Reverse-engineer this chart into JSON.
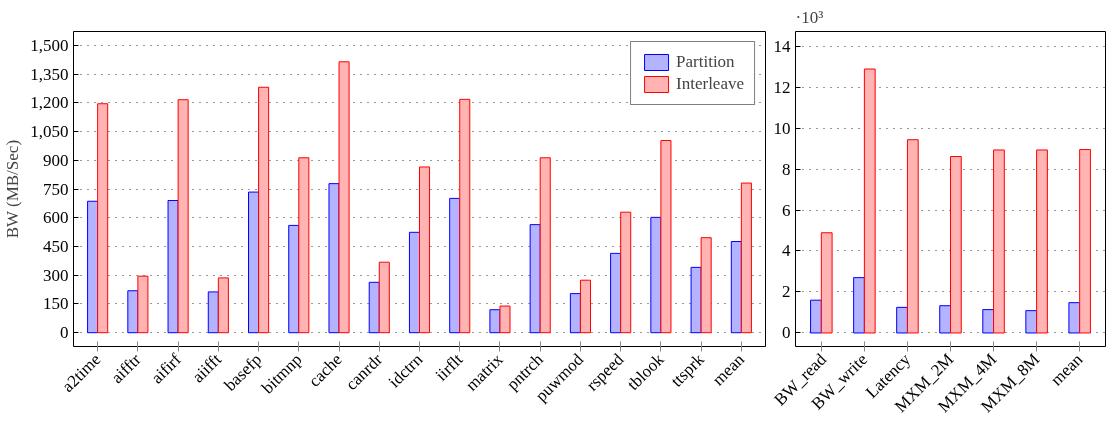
{
  "chart_data": [
    {
      "type": "bar",
      "ylabel": "BW (MB/Sec)",
      "categories": [
        "a2time",
        "aifftr",
        "aifirf",
        "aiifft",
        "basefp",
        "bitmnp",
        "cache",
        "canrdr",
        "idctrn",
        "iirflt",
        "matrix",
        "pntrch",
        "puwmod",
        "rspeed",
        "tblook",
        "ttsprk",
        "mean"
      ],
      "series": [
        {
          "name": "Partition",
          "color": "#b3b3ff",
          "values": [
            686,
            219,
            690,
            213,
            734,
            560,
            778,
            263,
            524,
            701,
            120,
            564,
            204,
            414,
            602,
            341,
            476
          ]
        },
        {
          "name": "Interleave",
          "color": "#ffb3b3",
          "values": [
            1195,
            295,
            1216,
            286,
            1281,
            913,
            1414,
            368,
            865,
            1218,
            139,
            913,
            274,
            629,
            1003,
            496,
            781
          ]
        }
      ],
      "ylim": [
        -72,
        1572
      ],
      "yticks": [
        0,
        150,
        300,
        450,
        600,
        750,
        900,
        {
          "value": 1050,
          "label": "1,050"
        },
        {
          "value": 1200,
          "label": "1,200"
        },
        {
          "value": 1350,
          "label": "1,350"
        },
        {
          "value": 1500,
          "label": "1,500"
        }
      ],
      "grid": "y",
      "legend": "top right"
    },
    {
      "type": "bar",
      "annotations": [
        "·10³"
      ],
      "categories": [
        "BW_read",
        "BW_write",
        "Latency",
        "MXM_2M",
        "MXM_4M",
        "MXM_8M",
        "mean"
      ],
      "series": [
        {
          "color": "#b3b3ff",
          "values": [
            1.6,
            2.7,
            1.25,
            1.33,
            1.14,
            1.09,
            1.48
          ]
        },
        {
          "color": "#ffb3b3",
          "values": [
            4.89,
            12.88,
            9.43,
            8.61,
            8.93,
            8.93,
            8.95
          ]
        }
      ],
      "ylim": [
        -0.66,
        14.71
      ],
      "yticks": [
        0,
        2,
        4,
        6,
        8,
        10,
        12,
        14
      ],
      "grid": "y",
      "legend": false
    }
  ]
}
